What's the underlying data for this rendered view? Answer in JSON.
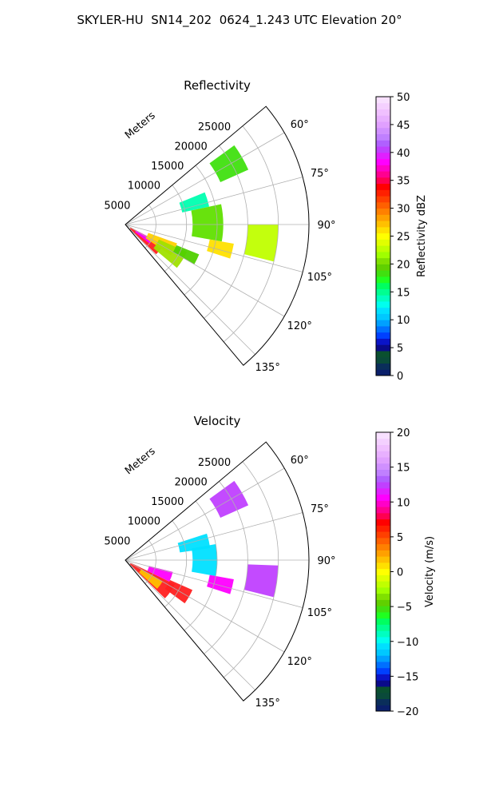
{
  "figure_title": "SKYLER-HU  SN14_202  0624_1.243 UTC Elevation 20°",
  "chart_data": [
    {
      "type": "polar-sector",
      "title": "Reflectivity",
      "radial_axis_label": "Meters",
      "radial_ticks": [
        "5000",
        "10000",
        "15000",
        "20000",
        "25000"
      ],
      "angle_ticks": [
        "60°",
        "75°",
        "90°",
        "105°",
        "120°",
        "135°"
      ],
      "angle_range_deg": [
        50,
        140
      ],
      "colorbar": {
        "label": "Reflectivity dBZ",
        "range": [
          0,
          50
        ],
        "ticks": [
          "0",
          "5",
          "10",
          "15",
          "20",
          "25",
          "30",
          "35",
          "40",
          "45",
          "50"
        ],
        "colors": [
          "#0a1f6a",
          "#0a2e5a",
          "#0a4a3a",
          "#0a5030",
          "#0a0a8a",
          "#0a14c8",
          "#0040ff",
          "#0070ff",
          "#00a0ff",
          "#00c8ff",
          "#00e0ff",
          "#00ffee",
          "#00ffc0",
          "#00ff90",
          "#00ff60",
          "#20ff20",
          "#40e010",
          "#60d000",
          "#80e000",
          "#a0ff00",
          "#c0ff00",
          "#e0ff00",
          "#ffff00",
          "#ffe000",
          "#ffc000",
          "#ffa000",
          "#ff8000",
          "#ff6000",
          "#ff4000",
          "#ff2000",
          "#ff0000",
          "#ff0050",
          "#ff0090",
          "#ff00c8",
          "#ff00ff",
          "#e020ff",
          "#c040ff",
          "#b060ff",
          "#c080ff",
          "#d090ff",
          "#e0a0ff",
          "#e8b0ff",
          "#f0c0ff",
          "#f4d0ff",
          "#f8e0ff"
        ]
      },
      "echo_regions": [
        {
          "az_deg": [
            118,
            134
          ],
          "range_km": [
            1.0,
            7.0
          ],
          "color": "#ff2020"
        },
        {
          "az_deg": [
            118,
            128
          ],
          "range_km": [
            2.0,
            5.0
          ],
          "color": "#ff00ff"
        },
        {
          "az_deg": [
            110,
            124
          ],
          "range_km": [
            4.0,
            9.0
          ],
          "color": "#ffd000"
        },
        {
          "az_deg": [
            114,
            130
          ],
          "range_km": [
            6.0,
            11.0
          ],
          "color": "#a0e000"
        },
        {
          "az_deg": [
            112,
            120
          ],
          "range_km": [
            9.0,
            13.0
          ],
          "color": "#50d000"
        },
        {
          "az_deg": [
            68,
            78
          ],
          "range_km": [
            9.5,
            14.0
          ],
          "color": "#00ffb0"
        },
        {
          "az_deg": [
            78,
            100
          ],
          "range_km": [
            11.0,
            16.0
          ],
          "color": "#60e000"
        },
        {
          "az_deg": [
            54,
            66
          ],
          "range_km": [
            17.0,
            22.0
          ],
          "color": "#40e010"
        },
        {
          "az_deg": [
            90,
            104
          ],
          "range_km": [
            20.0,
            25.0
          ],
          "color": "#c0ff00"
        },
        {
          "az_deg": [
            100,
            108
          ],
          "range_km": [
            14.0,
            18.0
          ],
          "color": "#ffe000"
        }
      ]
    },
    {
      "type": "polar-sector",
      "title": "Velocity",
      "radial_axis_label": "Meters",
      "radial_ticks": [
        "5000",
        "10000",
        "15000",
        "20000",
        "25000"
      ],
      "angle_ticks": [
        "60°",
        "75°",
        "90°",
        "105°",
        "120°",
        "135°"
      ],
      "angle_range_deg": [
        50,
        140
      ],
      "colorbar": {
        "label": "Velocity (m/s)",
        "range": [
          -20,
          20
        ],
        "ticks": [
          "−20",
          "−15",
          "−10",
          "−5",
          "0",
          "5",
          "10",
          "15",
          "20"
        ],
        "colors": [
          "#0a1f6a",
          "#0a2e5a",
          "#0a4a3a",
          "#0a5030",
          "#0a0a8a",
          "#0a14c8",
          "#0040ff",
          "#0070ff",
          "#00a0ff",
          "#00c8ff",
          "#00e0ff",
          "#00ffee",
          "#00ffc0",
          "#00ff90",
          "#00ff60",
          "#20ff20",
          "#40e010",
          "#60d000",
          "#80e000",
          "#a0ff00",
          "#c0ff00",
          "#e0ff00",
          "#ffff00",
          "#ffe000",
          "#ffc000",
          "#ffa000",
          "#ff8000",
          "#ff6000",
          "#ff4000",
          "#ff2000",
          "#ff0000",
          "#ff0050",
          "#ff0090",
          "#ff00c8",
          "#ff00ff",
          "#e020ff",
          "#c040ff",
          "#b060ff",
          "#c080ff",
          "#d090ff",
          "#e0a0ff",
          "#e8b0ff",
          "#f0c0ff",
          "#f4d0ff",
          "#f8e0ff"
        ]
      },
      "echo_regions": [
        {
          "az_deg": [
            116,
            134
          ],
          "range_km": [
            1.0,
            9.0
          ],
          "color": "#ff2020"
        },
        {
          "az_deg": [
            120,
            132
          ],
          "range_km": [
            3.0,
            7.0
          ],
          "color": "#ffc000"
        },
        {
          "az_deg": [
            104,
            116
          ],
          "range_km": [
            4.0,
            8.0
          ],
          "color": "#ff00ff"
        },
        {
          "az_deg": [
            114,
            126
          ],
          "range_km": [
            8.0,
            12.0
          ],
          "color": "#ff2020"
        },
        {
          "az_deg": [
            72,
            82
          ],
          "range_km": [
            9.0,
            14.0
          ],
          "color": "#00e0ff"
        },
        {
          "az_deg": [
            80,
            100
          ],
          "range_km": [
            11.0,
            15.0
          ],
          "color": "#00e0ff"
        },
        {
          "az_deg": [
            54,
            66
          ],
          "range_km": [
            17.0,
            22.0
          ],
          "color": "#c040ff"
        },
        {
          "az_deg": [
            92,
            104
          ],
          "range_km": [
            20.0,
            25.0
          ],
          "color": "#c040ff"
        },
        {
          "az_deg": [
            100,
            108
          ],
          "range_km": [
            14.0,
            18.0
          ],
          "color": "#ff00ff"
        }
      ]
    }
  ]
}
